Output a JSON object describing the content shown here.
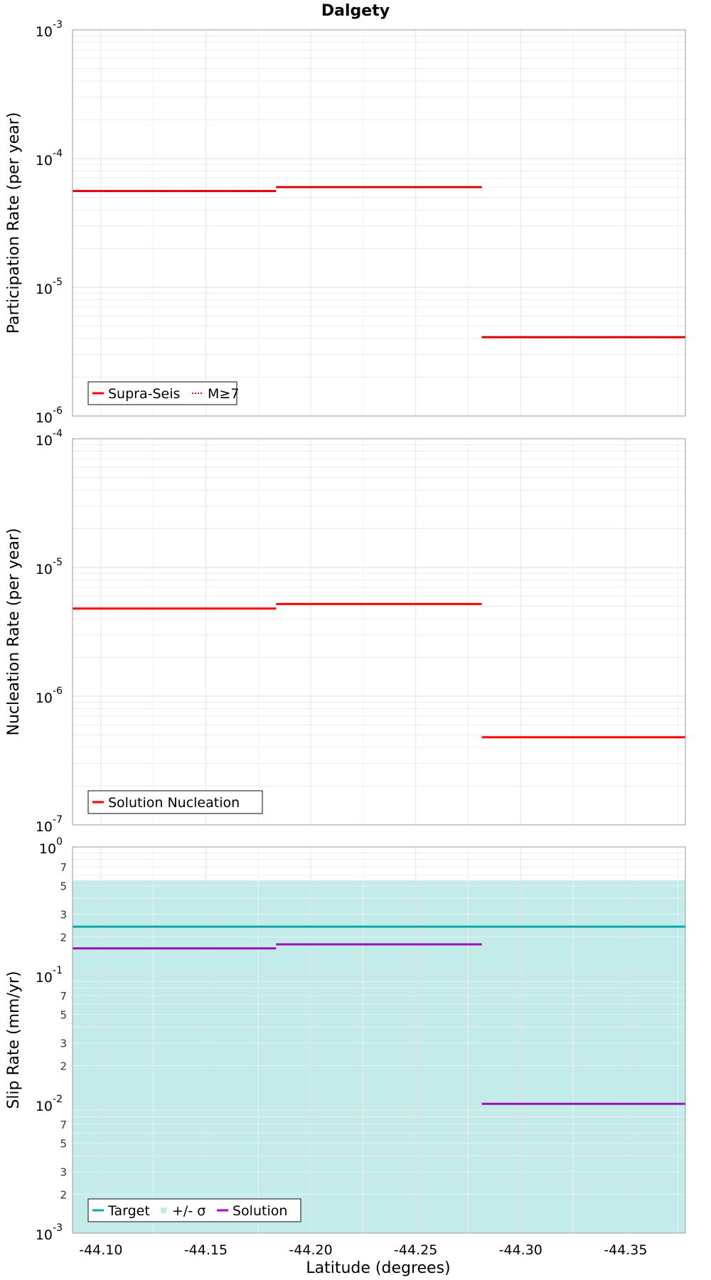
{
  "chart_data": {
    "title": "Dalgety",
    "xlabel": "Latitude (degrees)",
    "xlim": [
      -44.0865,
      -44.3785
    ],
    "x_ticks": [
      "-44.10",
      "-44.15",
      "-44.20",
      "-44.25",
      "-44.30",
      "-44.35"
    ],
    "x_tick_values": [
      -44.1,
      -44.15,
      -44.2,
      -44.25,
      -44.3,
      -44.35
    ],
    "panels": [
      {
        "id": "participation",
        "type": "line",
        "ylabel": "Participation Rate (per year)",
        "yscale": "log",
        "ylim_exp": [
          -6,
          -3
        ],
        "y_ticks": [
          {
            "base": "10",
            "exp": "-6"
          },
          {
            "base": "10",
            "exp": "-5"
          },
          {
            "base": "10",
            "exp": "-4"
          },
          {
            "base": "10",
            "exp": "-3"
          }
        ],
        "minor_labels": [],
        "series": [
          {
            "name": "Supra-Seis",
            "color": "#ff0000",
            "style": "solid",
            "segments": [
              {
                "x0": -44.0865,
                "x1": -44.1835,
                "y": 5.6e-05
              },
              {
                "x0": -44.1835,
                "x1": -44.2815,
                "y": 6e-05
              },
              {
                "x0": -44.2815,
                "x1": -44.3785,
                "y": 4.1e-06
              }
            ]
          },
          {
            "name": "M≥7",
            "color": "#ff0000",
            "style": "dotted",
            "segments": [
              {
                "x0": -44.0865,
                "x1": -44.1835,
                "y": 5.6e-05
              },
              {
                "x0": -44.1835,
                "x1": -44.2815,
                "y": 6e-05
              },
              {
                "x0": -44.2815,
                "x1": -44.3785,
                "y": 4.1e-06
              }
            ]
          }
        ],
        "legend": [
          {
            "label": "Supra-Seis",
            "color": "#ff0000",
            "kind": "line"
          },
          {
            "label": "M≥7",
            "color": "#ff0000",
            "kind": "dotted"
          }
        ]
      },
      {
        "id": "nucleation",
        "type": "line",
        "ylabel": "Nucleation Rate (per year)",
        "yscale": "log",
        "ylim_exp": [
          -7,
          -4
        ],
        "y_ticks": [
          {
            "base": "10",
            "exp": "-7"
          },
          {
            "base": "10",
            "exp": "-6"
          },
          {
            "base": "10",
            "exp": "-5"
          },
          {
            "base": "10",
            "exp": "-4"
          }
        ],
        "minor_labels": [],
        "series": [
          {
            "name": "Solution Nucleation",
            "color": "#ff0000",
            "style": "solid",
            "segments": [
              {
                "x0": -44.0865,
                "x1": -44.1835,
                "y": 4.8e-06
              },
              {
                "x0": -44.1835,
                "x1": -44.2815,
                "y": 5.2e-06
              },
              {
                "x0": -44.2815,
                "x1": -44.3785,
                "y": 4.8e-07
              }
            ]
          }
        ],
        "legend": [
          {
            "label": "Solution Nucleation",
            "color": "#ff0000",
            "kind": "line"
          }
        ]
      },
      {
        "id": "slip",
        "type": "line",
        "ylabel": "Slip Rate (mm/yr)",
        "yscale": "log",
        "ylim_exp": [
          -3,
          0
        ],
        "y_ticks": [
          {
            "base": "10",
            "exp": "-3"
          },
          {
            "base": "10",
            "exp": "-2"
          },
          {
            "base": "10",
            "exp": "-1"
          },
          {
            "base": "10",
            "exp": "0"
          }
        ],
        "minor_labels": [
          {
            "label": "2",
            "value": 0.002
          },
          {
            "label": "3",
            "value": 0.003
          },
          {
            "label": "5",
            "value": 0.005
          },
          {
            "label": "7",
            "value": 0.007
          },
          {
            "label": "2",
            "value": 0.02
          },
          {
            "label": "3",
            "value": 0.03
          },
          {
            "label": "5",
            "value": 0.05
          },
          {
            "label": "7",
            "value": 0.07
          },
          {
            "label": "2",
            "value": 0.2
          },
          {
            "label": "3",
            "value": 0.3
          },
          {
            "label": "5",
            "value": 0.5
          },
          {
            "label": "7",
            "value": 0.7
          }
        ],
        "band": {
          "name": "+/- σ",
          "color": "#c2ebea",
          "y0": 0.001,
          "y1": 0.55
        },
        "series": [
          {
            "name": "Target",
            "color": "#0aa8a8",
            "style": "solid",
            "segments": [
              {
                "x0": -44.0865,
                "x1": -44.3785,
                "y": 0.24
              }
            ]
          },
          {
            "name": "Solution",
            "color": "#9d0fbf",
            "style": "solid",
            "segments": [
              {
                "x0": -44.0865,
                "x1": -44.1835,
                "y": 0.163
              },
              {
                "x0": -44.1835,
                "x1": -44.2815,
                "y": 0.175
              },
              {
                "x0": -44.2815,
                "x1": -44.3785,
                "y": 0.0101
              }
            ]
          }
        ],
        "legend": [
          {
            "label": "Target",
            "color": "#0aa8a8",
            "kind": "line"
          },
          {
            "label": "+/- σ",
            "color": "#c2ebea",
            "kind": "dot"
          },
          {
            "label": "Solution",
            "color": "#9d0fbf",
            "kind": "line"
          }
        ]
      }
    ]
  }
}
